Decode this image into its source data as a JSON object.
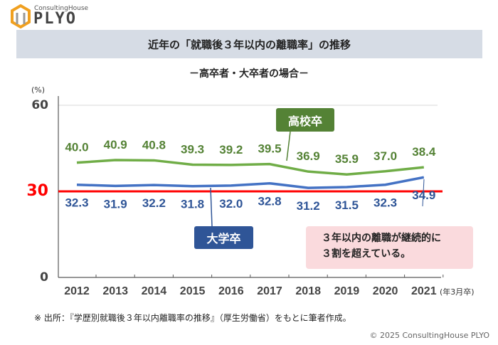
{
  "logo": {
    "small": "ConsultingHouse",
    "big": "PLYO"
  },
  "title": "近年の「就職後３年以内の離職率」の推移",
  "subtitle": "－高卒者・大卒者の場合－",
  "callout_note": [
    "３年以内の離職が継続的に",
    "３割を超えている。"
  ],
  "source_note": "※ 出所：『学歴別就職後３年以内離職率の推移』（厚生労働省）をもとに筆者作成。",
  "copyright": "© 2025 ConsultingHouse PLYO",
  "chart_data": {
    "type": "line",
    "ylabel": "(%)",
    "ylim": [
      0,
      60
    ],
    "yticks": [
      "0",
      "60"
    ],
    "x_unit_label": "(年3月卒)",
    "categories": [
      "2012",
      "2013",
      "2014",
      "2015",
      "2016",
      "2017",
      "2018",
      "2019",
      "2020",
      "2021"
    ],
    "reference_line": {
      "value": 30,
      "label": "30",
      "color": "#ff0000"
    },
    "series": [
      {
        "name": "高校卒",
        "color": "#70ad47",
        "label_color": "#548235",
        "values": [
          40.0,
          40.9,
          40.8,
          39.3,
          39.2,
          39.5,
          36.9,
          35.9,
          37.0,
          38.4
        ]
      },
      {
        "name": "大学卒",
        "color": "#4472c4",
        "label_color": "#2f5597",
        "values": [
          32.3,
          31.9,
          32.2,
          31.8,
          32.0,
          32.8,
          31.2,
          31.5,
          32.3,
          34.9
        ]
      }
    ]
  }
}
